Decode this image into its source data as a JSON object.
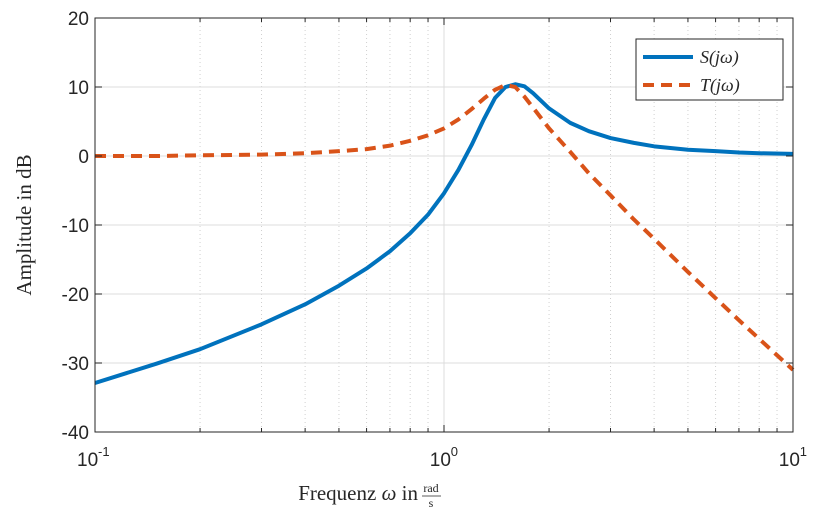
{
  "chart_data": {
    "type": "line",
    "xscale": "log",
    "xlim": [
      0.1,
      10
    ],
    "ylim": [
      -40,
      20
    ],
    "grid": true,
    "legend_position": "top-right",
    "xlabel": {
      "prefix": "Frequenz ",
      "symbol": "ω",
      "middle": " in ",
      "frac_num": "rad",
      "frac_den": "s"
    },
    "ylabel": "Amplitude in dB",
    "xticks": [
      {
        "value": 0.1,
        "base": "10",
        "exp": "-1"
      },
      {
        "value": 1,
        "base": "10",
        "exp": "0"
      },
      {
        "value": 10,
        "base": "10",
        "exp": "1"
      }
    ],
    "yticks": [
      {
        "value": 20,
        "label": "20"
      },
      {
        "value": 10,
        "label": "10"
      },
      {
        "value": 0,
        "label": "0"
      },
      {
        "value": -10,
        "label": "-10"
      },
      {
        "value": -20,
        "label": "-20"
      },
      {
        "value": -30,
        "label": "-30"
      },
      {
        "value": -40,
        "label": "-40"
      }
    ],
    "series": [
      {
        "name": "S(jω)",
        "color": "#0072bd",
        "style": "solid",
        "x": [
          0.1,
          0.15,
          0.2,
          0.3,
          0.4,
          0.5,
          0.6,
          0.7,
          0.8,
          0.9,
          1.0,
          1.1,
          1.2,
          1.3,
          1.4,
          1.5,
          1.6,
          1.7,
          1.8,
          2.0,
          2.3,
          2.6,
          3.0,
          3.5,
          4.0,
          5.0,
          6.0,
          7.0,
          8.0,
          10.0
        ],
        "y": [
          -32.9,
          -30.1,
          -28.0,
          -24.4,
          -21.5,
          -18.8,
          -16.3,
          -13.8,
          -11.2,
          -8.5,
          -5.4,
          -2.0,
          1.6,
          5.3,
          8.4,
          10.0,
          10.4,
          10.1,
          9.1,
          6.9,
          4.8,
          3.6,
          2.6,
          1.9,
          1.4,
          0.9,
          0.7,
          0.5,
          0.4,
          0.3
        ]
      },
      {
        "name": "T(jω)",
        "color": "#d95319",
        "style": "dashed",
        "x": [
          0.1,
          0.15,
          0.2,
          0.3,
          0.4,
          0.5,
          0.6,
          0.7,
          0.8,
          0.9,
          1.0,
          1.1,
          1.2,
          1.3,
          1.4,
          1.5,
          1.6,
          1.7,
          1.8,
          2.0,
          2.3,
          2.6,
          3.0,
          3.5,
          4.0,
          5.0,
          6.0,
          7.0,
          8.0,
          10.0
        ],
        "y": [
          0.0,
          0.0,
          0.1,
          0.2,
          0.4,
          0.7,
          1.0,
          1.5,
          2.2,
          3.0,
          4.0,
          5.3,
          6.8,
          8.3,
          9.6,
          10.3,
          10.0,
          8.6,
          7.0,
          4.0,
          0.6,
          -2.5,
          -5.7,
          -9.2,
          -12.0,
          -16.8,
          -20.6,
          -23.8,
          -26.5,
          -31.0
        ]
      }
    ]
  }
}
